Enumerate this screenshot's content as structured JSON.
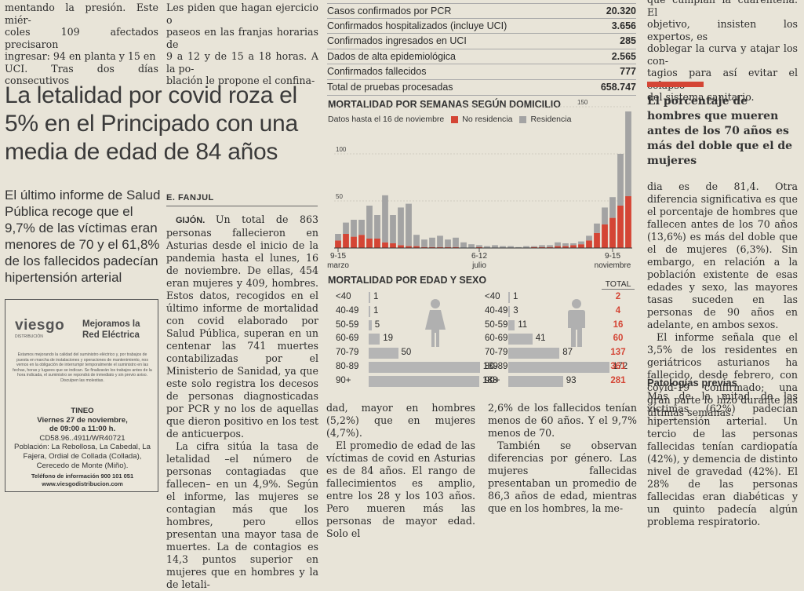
{
  "top_col1": [
    "mentando la presión. Este miér-",
    "coles 109 afectados precisaron",
    "ingresar: 94 en planta y 15 en",
    "UCI. Tras dos días consecutivos"
  ],
  "top_col2": [
    "Les piden que hagan ejercicio o",
    "paseos en las franjas horarias de",
    "9 a 12 y de 15 a 18 horas. A la po-",
    "blación le propone el confina-"
  ],
  "top_col_right": [
    "que cumplan la cuarentena. El",
    "objetivo, insisten los expertos, es",
    "doblegar la curva y atajar los con-",
    "tagios para así evitar el colapso",
    "del sistema sanitario."
  ],
  "headline": "La letalidad por covid roza el 5% en el Principado con una media de edad de 84 años",
  "subhead": "El último informe de Salud Pública recoge que el 9,7% de las víctimas eran menores de 70 y el 61,8% de los fallecidos padecían hipertensión arterial",
  "byline": "E. FANJUL",
  "stats": [
    {
      "label": "Casos confirmados por PCR",
      "value": "20.320"
    },
    {
      "label": "Confirmados hospitalizados (incluye UCI)",
      "value": "3.656"
    },
    {
      "label": "Confirmados ingresados en UCI",
      "value": "285"
    },
    {
      "label": "Dados de alta epidemiológica",
      "value": "2.565"
    },
    {
      "label": "Confirmados fallecidos",
      "value": "777"
    },
    {
      "label": "Total de pruebas procesadas",
      "value": "658.747"
    }
  ],
  "colors": {
    "red": "#d44535",
    "gray": "#a3a3a3",
    "text": "#2c2c2c"
  },
  "chart_data": [
    {
      "type": "bar",
      "title": "MORTALIDAD POR SEMANAS SEGÚN DOMICILIO",
      "subtitle": "Datos hasta el 16 de noviembre",
      "stacked": true,
      "legend": [
        "No residencia",
        "Residencia"
      ],
      "yticks": [
        50,
        100,
        150
      ],
      "ylim": [
        0,
        150
      ],
      "xtick_labels": [
        {
          "index": 0,
          "line1": "9-15",
          "line2": "marzo"
        },
        {
          "index": 18,
          "line1": "6-12",
          "line2": "julio"
        },
        {
          "index": 35,
          "line1": "9-15",
          "line2": "noviembre"
        }
      ],
      "series": [
        {
          "name": "No residencia",
          "values": [
            8,
            15,
            12,
            14,
            10,
            10,
            6,
            5,
            3,
            2,
            2,
            1,
            1,
            1,
            1,
            1,
            0,
            0,
            1,
            0,
            0,
            0,
            0,
            0,
            0,
            1,
            1,
            1,
            2,
            2,
            3,
            4,
            8,
            16,
            25,
            32,
            45,
            55
          ]
        },
        {
          "name": "Residencia",
          "values": [
            7,
            12,
            18,
            16,
            35,
            25,
            50,
            30,
            40,
            45,
            12,
            8,
            10,
            12,
            8,
            10,
            6,
            4,
            2,
            2,
            3,
            2,
            2,
            1,
            2,
            1,
            2,
            2,
            4,
            3,
            2,
            3,
            5,
            10,
            18,
            22,
            55,
            90
          ]
        }
      ]
    },
    {
      "type": "bar",
      "title": "MORTALIDAD POR EDAD Y SEXO",
      "orientation": "horizontal",
      "categories": [
        "<40",
        "40-49",
        "50-59",
        "60-69",
        "70-79",
        "80-89",
        "90+"
      ],
      "series": [
        {
          "values": [
            1,
            1,
            5,
            19,
            50,
            189,
            188
          ]
        },
        {
          "values": [
            1,
            3,
            11,
            41,
            87,
            172,
            93
          ]
        }
      ],
      "total_label": "TOTAL",
      "totals": [
        2,
        4,
        16,
        60,
        137,
        361,
        281
      ]
    }
  ],
  "col2_body": [
    {
      "lead": "GIJÓN.",
      "text": "Un total de 863 personas fallecieron en Asturias desde el inicio de la pandemia hasta el lunes, 16 de noviembre. De ellas, 454 eran mujeres y 409, hombres. Estos datos, recogidos en el último informe de mortalidad con covid elaborado por Salud Pública, superan en un centenar las 741 muertes contabilizadas por el Ministerio de Sanidad, ya que este solo registra los decesos de personas diagnosticadas por PCR y no los de aquellas que dieron positivo en los test de anticuerpos."
    },
    {
      "lead": "",
      "text": "La cifra sitúa la tasa de letalidad –el número de personas contagiadas que fallecen– en un 4,9%. Según el informe, las mujeres se contagian más que los hombres, pero ellos presentan una mayor tasa de muertes. La de contagios es 14,3 puntos superior en mujeres que en hombres y la de letali-"
    }
  ],
  "col3_body": [
    {
      "text": "dad, mayor en hombres (5,2%) que en mujeres (4,7%).",
      "noind": true
    },
    {
      "text": "El promedio de edad de las víctimas de covid en Asturias es de 84 años. El rango de fallecimientos es amplio, entre los 28 y los 103 años. Pero mueren más las personas de mayor edad. Solo el"
    }
  ],
  "col4_body": [
    {
      "text": "2,6% de los fallecidos tenían menos de 60 años. Y el 9,7% menos de 70.",
      "noind": true
    },
    {
      "text": "También se observan diferencias por género. Las mujeres fallecidas presentaban un promedio de 86,3 años de edad, mientras que en los hombres, la me-"
    }
  ],
  "right_head": "El porcentaje de hombres que mueren antes de los 70 años es más del doble que el de mujeres",
  "right_body": [
    {
      "text": "dia es de 81,4. Otra diferencia significativa es que el porcentaje de hombres que fallecen antes de los 70 años (13,6%) es más del doble que el de mujeres (6,3%). Sin embargo, en relación a la población existente de esas edades y sexo, las mayores tasas suceden en las personas de 90 años en adelante, en ambos sexos.",
      "noind": true
    },
    {
      "text": "El informe señala que el 3,5% de los residentes en geriátricos asturianos ha fallecido, desde febrero, con covid-19 confirmado; una gran parte lo hizo durante las últimas semanas."
    }
  ],
  "right_subsection": "Patologías previas",
  "right_body2": "Más de la mitad de las víctimas (62%) padecían hipertensión arterial. Un tercio de las personas fallecidas tenían cardiopatía (42%), y demencia de distinto nivel de gravedad (42%). El 28% de las personas fallecidas eran diabéticas y un quinto padecía algún problema respiratorio.",
  "ad": {
    "logo": "viesgo",
    "logo_sub": "DISTRIBUCIÓN",
    "slogan": "Mejoramos la Red Eléctrica",
    "small_print": "Estamos mejorando la calidad del suministro eléctrico y, por trabajos de puesta en marcha de instalaciones y operaciones de mantenimiento, nos vemos en la obligación de interrumpir temporalmente el suministro en las fechas, horas y lugares que se indican. Se finalizarán los trabajos antes de la hora indicada, el suministro se repondrá de inmediato y sin previo aviso. Disculpen las molestias.",
    "place": "TINEO",
    "date": "Viernes 27 de noviembre,",
    "time": "de 09:00 a 11:00 h.",
    "code": "CD58.96..4911/WR40721",
    "locations": "Población: La Rebollosa, La Cabedal, La Fajera, Ordial de Collada (Collada), Cerecedo de Monte (Miño).",
    "phone": "Teléfono de información 900 101 051",
    "web": "www.viesgodistribucion.com"
  }
}
